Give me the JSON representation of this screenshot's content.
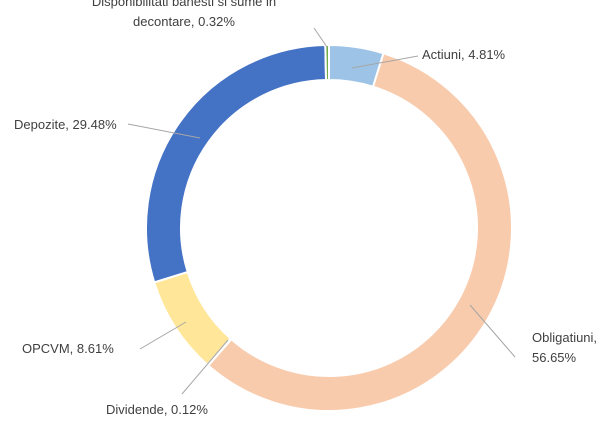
{
  "chart_data": {
    "type": "pie",
    "variant": "donut",
    "title": "",
    "legend": "none",
    "slices": [
      {
        "label_lines": [
          "Actiuni, 4.81%"
        ],
        "value": 4.81,
        "color": "#9dc3e6"
      },
      {
        "label_lines": [
          "Obligatiuni,",
          "56.65%"
        ],
        "value": 56.65,
        "color": "#f8cbad"
      },
      {
        "label_lines": [
          "Dividende, 0.12%"
        ],
        "value": 0.12,
        "color": "#f4b183"
      },
      {
        "label_lines": [
          "OPCVM, 8.61%"
        ],
        "value": 8.61,
        "color": "#ffe699"
      },
      {
        "label_lines": [
          "Depozite, 29.48%"
        ],
        "value": 29.48,
        "color": "#4472c4"
      },
      {
        "label_lines": [
          "Disponibilitati banesti si sume in",
          "decontare, 0.32%"
        ],
        "value": 0.32,
        "color": "#70ad47"
      }
    ]
  }
}
